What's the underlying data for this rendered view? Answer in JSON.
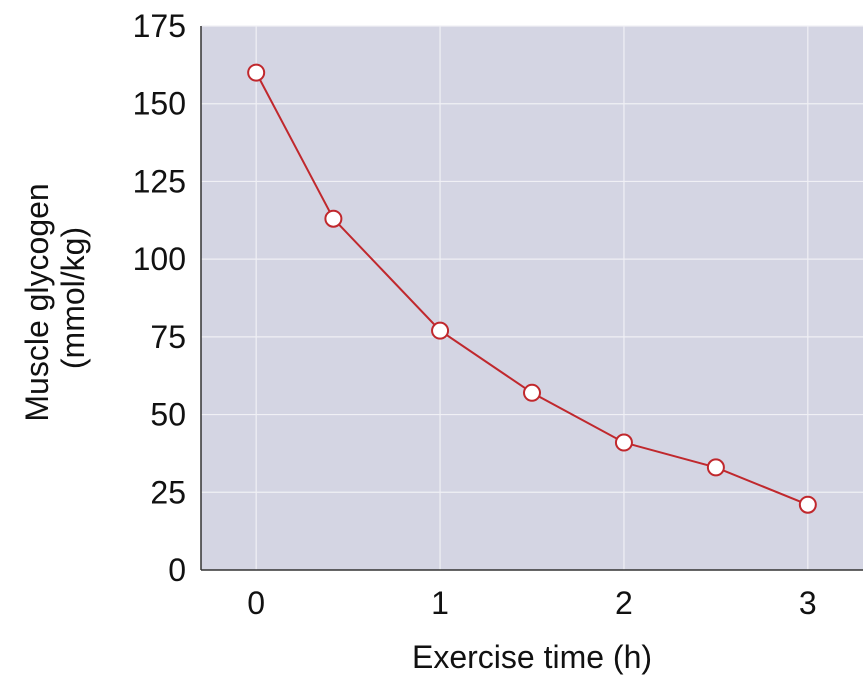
{
  "chart_data": {
    "type": "line",
    "xlabel": "Exercise time (h)",
    "ylabel_line1": "Muscle glycogen",
    "ylabel_line2": "(mmol/kg)",
    "xlim": [
      -0.3,
      3.3
    ],
    "ylim": [
      0,
      175
    ],
    "x_ticks": [
      0,
      1,
      2,
      3
    ],
    "y_ticks": [
      0,
      25,
      50,
      75,
      100,
      125,
      150,
      175
    ],
    "x_tick_labels": [
      "0",
      "1",
      "2",
      "3"
    ],
    "y_tick_labels": [
      "0",
      "25",
      "50",
      "75",
      "100",
      "125",
      "150",
      "175"
    ],
    "grid": true,
    "series": [
      {
        "x": [
          0,
          0.42,
          1.0,
          1.5,
          2.0,
          2.5,
          3.0
        ],
        "values": [
          160,
          113,
          77,
          57,
          41,
          33,
          21
        ]
      }
    ],
    "colors": {
      "plot_bg": "#d4d5e3",
      "grid": "#f0f0f5",
      "line": "#c0282d",
      "marker_fill": "#ffffff"
    }
  }
}
